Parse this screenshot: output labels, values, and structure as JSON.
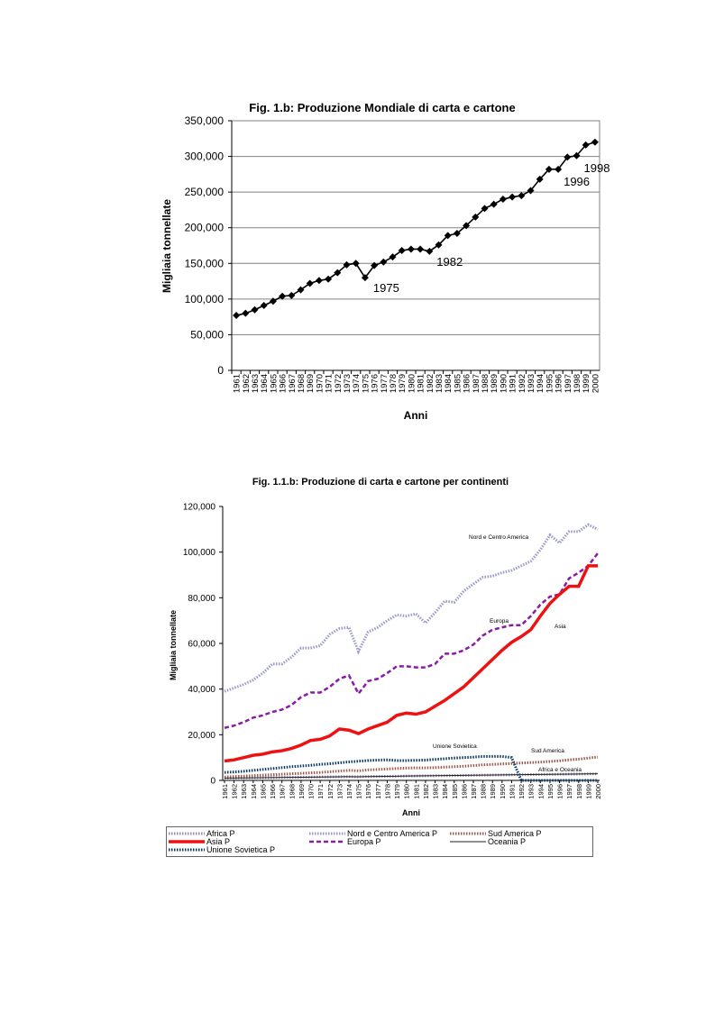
{
  "chart_data": [
    {
      "type": "line",
      "title": "Fig. 1.b: Produzione Mondiale di carta e cartone",
      "xlabel": "Anni",
      "ylabel": "Migliaia tonnellate",
      "ylim": [
        0,
        350000
      ],
      "y_ticks": [
        "0",
        "50,000",
        "100,000",
        "150,000",
        "200,000",
        "250,000",
        "300,000",
        "350,000"
      ],
      "grid": "horizontal",
      "x": [
        "1961",
        "1962",
        "1963",
        "1964",
        "1965",
        "1966",
        "1967",
        "1968",
        "1969",
        "1970",
        "1971",
        "1972",
        "1973",
        "1974",
        "1975",
        "1976",
        "1977",
        "1978",
        "1979",
        "1980",
        "1981",
        "1982",
        "1983",
        "1984",
        "1985",
        "1986",
        "1987",
        "1988",
        "1989",
        "1990",
        "1991",
        "1992",
        "1993",
        "1994",
        "1995",
        "1996",
        "1997",
        "1998",
        "1999",
        "2000"
      ],
      "series": [
        {
          "values": [
            77000,
            80000,
            85000,
            91000,
            97000,
            104000,
            105000,
            113000,
            122000,
            126000,
            128000,
            137000,
            148000,
            150000,
            130000,
            147000,
            152000,
            159000,
            168000,
            170000,
            170000,
            167000,
            176000,
            189000,
            192000,
            203000,
            215000,
            227000,
            233000,
            240000,
            243000,
            245000,
            252000,
            268000,
            282000,
            282000,
            299000,
            301000,
            316000,
            320000
          ],
          "color": "#000000",
          "marker": "diamond"
        }
      ],
      "annotations": [
        {
          "text": "1975",
          "x": "1975"
        },
        {
          "text": "1982",
          "x": "1982"
        },
        {
          "text": "1996",
          "x": "1996"
        },
        {
          "text": "1998",
          "x": "1998"
        }
      ]
    },
    {
      "type": "line",
      "title": "Fig. 1.1.b: Produzione di carta e cartone per continenti",
      "xlabel": "Anni",
      "ylabel": "Migliaia tonnellate",
      "ylim": [
        0,
        120000
      ],
      "y_ticks": [
        "0",
        "20,000",
        "40,000",
        "60,000",
        "80,000",
        "100,000",
        "120,000"
      ],
      "grid": "off",
      "legend": "bottom",
      "x": [
        "1961",
        "1962",
        "1963",
        "1964",
        "1965",
        "1966",
        "1967",
        "1968",
        "1969",
        "1970",
        "1971",
        "1972",
        "1973",
        "1974",
        "1975",
        "1976",
        "1977",
        "1978",
        "1979",
        "1980",
        "1981",
        "1982",
        "1983",
        "1984",
        "1985",
        "1986",
        "1987",
        "1988",
        "1989",
        "1990",
        "1991",
        "1992",
        "1993",
        "1994",
        "1995",
        "1996",
        "1997",
        "1998",
        "1999",
        "2000"
      ],
      "series": [
        {
          "name": "Africa P",
          "color": "#9a8ab4",
          "values": [
            1000,
            1050,
            1100,
            1150,
            1200,
            1250,
            1300,
            1350,
            1400,
            1450,
            1500,
            1550,
            1600,
            1650,
            1600,
            1700,
            1750,
            1800,
            1850,
            1900,
            1950,
            2000,
            2050,
            2100,
            2150,
            2200,
            2250,
            2300,
            2350,
            2400,
            2450,
            2500,
            2550,
            2600,
            2650,
            2700,
            2750,
            2800,
            2850,
            2900
          ]
        },
        {
          "name": "Nord e Centro America P",
          "color": "#9a9ac8",
          "values": [
            39000,
            40500,
            42000,
            44000,
            47000,
            51000,
            51000,
            54000,
            58000,
            58000,
            59000,
            64000,
            66500,
            67000,
            56500,
            65000,
            67000,
            70000,
            72500,
            72000,
            73000,
            69000,
            73500,
            78500,
            78000,
            83000,
            86000,
            89000,
            89500,
            91000,
            92000,
            94000,
            96000,
            101000,
            107500,
            104000,
            109000,
            109000,
            112000,
            110000
          ]
        },
        {
          "name": "Sud America P",
          "color": "#9b5c50",
          "values": [
            1500,
            1700,
            1900,
            2100,
            2300,
            2500,
            2700,
            2900,
            3100,
            3300,
            3500,
            3800,
            4100,
            4400,
            4200,
            4600,
            4800,
            5000,
            5200,
            5400,
            5500,
            5500,
            5600,
            5800,
            6000,
            6200,
            6500,
            6800,
            7000,
            7200,
            7400,
            7600,
            7800,
            8000,
            8300,
            8600,
            9000,
            9300,
            9800,
            10200
          ]
        },
        {
          "name": "Asia P",
          "color": "#ee1111",
          "values": [
            8500,
            9000,
            10000,
            11000,
            11500,
            12500,
            13000,
            14000,
            15500,
            17500,
            18000,
            19500,
            22500,
            22000,
            20500,
            22500,
            24000,
            25500,
            28500,
            29500,
            29000,
            30000,
            32500,
            35000,
            38000,
            41000,
            45000,
            49000,
            53000,
            57000,
            60500,
            63000,
            66000,
            72000,
            77500,
            81500,
            85000,
            85000,
            94000,
            94000
          ]
        },
        {
          "name": "Europa P",
          "color": "#8a1aa8",
          "values": [
            23000,
            24000,
            25500,
            27500,
            28500,
            30000,
            31000,
            33000,
            36500,
            38500,
            38500,
            41000,
            44500,
            46000,
            38000,
            43500,
            44500,
            47000,
            50000,
            50000,
            49500,
            49500,
            51000,
            55500,
            55500,
            57000,
            59500,
            63500,
            66000,
            67000,
            68000,
            68000,
            72000,
            77000,
            80500,
            81500,
            88500,
            91000,
            94000,
            99500
          ]
        },
        {
          "name": "Oceania P",
          "color": "#222222",
          "values": [
            1000,
            1050,
            1100,
            1150,
            1200,
            1250,
            1300,
            1350,
            1400,
            1450,
            1500,
            1550,
            1600,
            1650,
            1600,
            1700,
            1750,
            1800,
            1850,
            1900,
            1950,
            2000,
            2050,
            2100,
            2150,
            2200,
            2250,
            2300,
            2350,
            2400,
            2450,
            2500,
            2550,
            2600,
            2650,
            2700,
            2750,
            2800,
            2850,
            2900
          ]
        },
        {
          "name": "Unione Sovietica P",
          "color": "#0b3a66",
          "values": [
            3500,
            3700,
            4000,
            4400,
            4800,
            5200,
            5600,
            6000,
            6300,
            6600,
            7000,
            7300,
            7700,
            8100,
            8400,
            8700,
            8900,
            9000,
            8700,
            8700,
            8800,
            8900,
            9200,
            9500,
            9800,
            10000,
            10200,
            10500,
            10500,
            10500,
            10000,
            0,
            0,
            0,
            0,
            0,
            0,
            0,
            0,
            0
          ]
        }
      ],
      "annotations": [
        {
          "text": "Nord e Centro America"
        },
        {
          "text": "Europa"
        },
        {
          "text": "Asia"
        },
        {
          "text": "Unione Sovietica"
        },
        {
          "text": "Sud America"
        },
        {
          "text": "Africa e Oceania"
        }
      ]
    }
  ]
}
